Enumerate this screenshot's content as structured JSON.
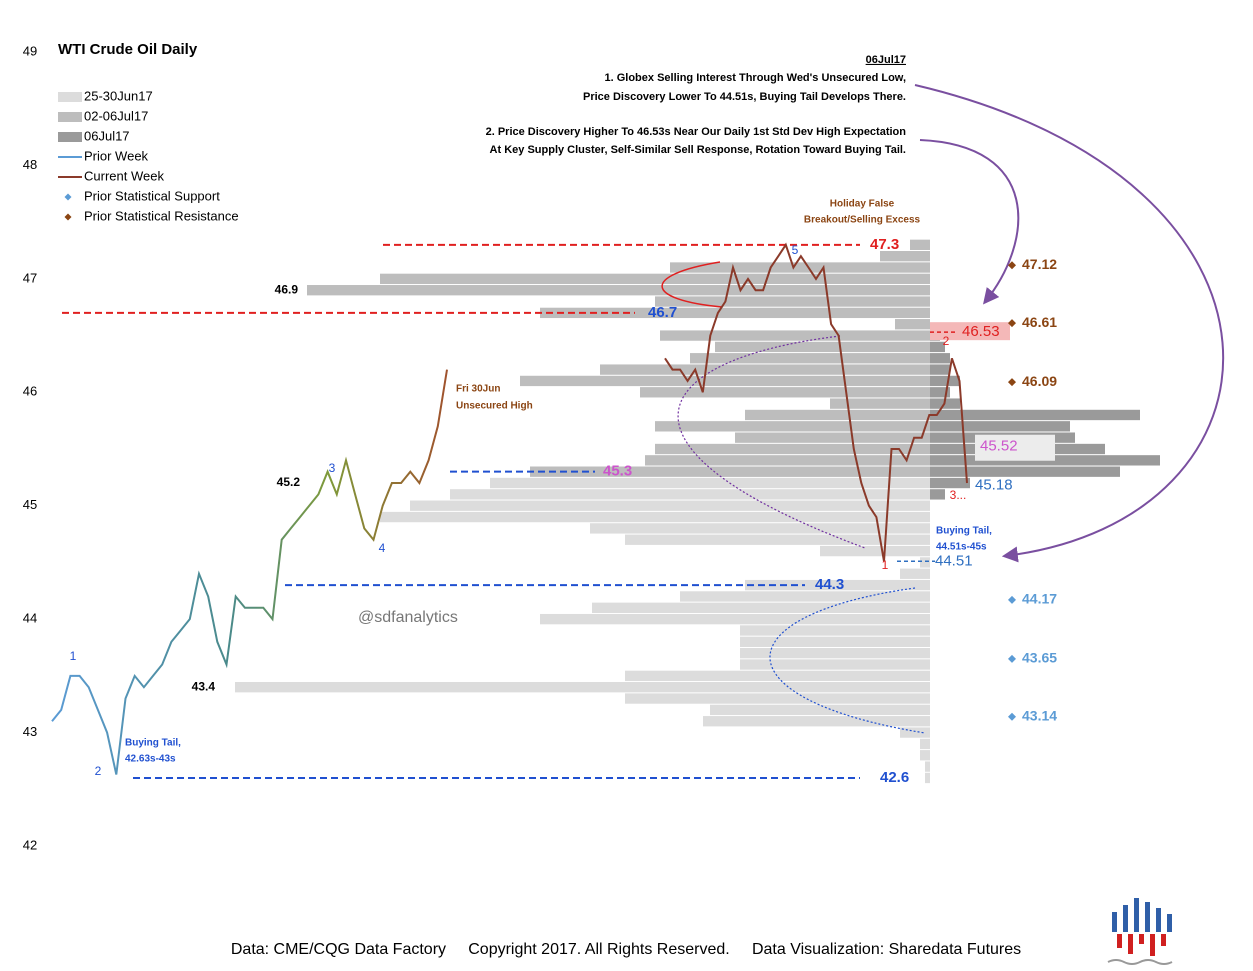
{
  "chart_data": {
    "type": "line",
    "title": "WTI Crude Oil Daily",
    "ylim": [
      42,
      49
    ],
    "yticks": [
      42,
      43,
      44,
      45,
      46,
      47,
      48,
      49
    ],
    "series": [
      {
        "name": "Prior Week",
        "color": "#5b9bd5",
        "values": [
          43.1,
          43.2,
          43.5,
          43.5,
          43.4,
          43.2,
          43.0,
          42.63,
          43.3,
          43.5,
          43.4,
          43.5,
          43.6,
          43.8,
          43.9,
          44.0,
          44.4,
          44.2,
          43.8,
          43.6,
          44.2,
          44.1,
          44.1,
          44.1,
          44.0,
          44.7,
          44.8,
          44.9,
          45.0,
          45.1,
          45.3,
          45.1,
          45.4,
          45.1,
          44.8,
          44.7,
          45.0,
          45.2,
          45.2,
          45.3,
          45.2,
          45.4,
          45.7,
          46.2
        ]
      },
      {
        "name": "Current Week",
        "color": "#8b3a2a",
        "values": [
          46.3,
          46.2,
          46.2,
          46.1,
          46.2,
          46.0,
          46.5,
          46.7,
          46.8,
          47.1,
          46.9,
          47.0,
          46.9,
          46.9,
          47.1,
          47.2,
          47.3,
          47.1,
          47.2,
          47.1,
          47.0,
          47.1,
          46.6,
          46.5,
          46.0,
          45.5,
          45.2,
          45.0,
          44.9,
          44.51,
          45.5,
          45.5,
          45.4,
          45.6,
          45.6,
          45.8,
          45.8,
          45.9,
          46.3,
          46.1,
          45.2
        ]
      }
    ],
    "profiles": [
      {
        "name": "25-30Jun17",
        "color": "#dcdcdc",
        "levels": [
          42.6,
          42.7,
          42.8,
          42.9,
          43.0,
          43.1,
          43.2,
          43.3,
          43.4,
          43.5,
          43.6,
          43.7,
          43.8,
          43.9,
          44.0,
          44.1,
          44.2,
          44.3,
          44.4,
          44.5,
          44.6,
          44.7,
          44.8,
          44.9,
          45.0,
          45.1,
          45.2,
          45.3
        ],
        "values": [
          5,
          5,
          10,
          10,
          30,
          227,
          220,
          305,
          695,
          305,
          190,
          190,
          190,
          190,
          390,
          338,
          250,
          185,
          30,
          10,
          110,
          305,
          340,
          550,
          520,
          480,
          440,
          230
        ]
      },
      {
        "name": "02-06Jul17",
        "color": "#bdbdbd",
        "levels": [
          45.3,
          45.4,
          45.5,
          45.6,
          45.7,
          45.8,
          45.9,
          46.0,
          46.1,
          46.2,
          46.3,
          46.4,
          46.5,
          46.6,
          46.7,
          46.8,
          46.9,
          47.0,
          47.1,
          47.2,
          47.3
        ],
        "values": [
          400,
          285,
          275,
          195,
          275,
          185,
          100,
          290,
          410,
          330,
          240,
          215,
          270,
          35,
          390,
          275,
          623,
          550,
          260,
          50,
          20
        ]
      },
      {
        "name": "06Jul17",
        "color": "#9a9a9a",
        "levels": [
          45.1,
          45.2,
          45.3,
          45.4,
          45.5,
          45.6,
          45.7,
          45.8,
          45.9,
          46.0,
          46.1,
          46.2,
          46.3,
          46.4,
          46.5
        ],
        "values": [
          15,
          40,
          190,
          230,
          175,
          145,
          140,
          210,
          30,
          20,
          30,
          20,
          20,
          15,
          10
        ]
      }
    ],
    "support": {
      "name": "Prior Statistical Support",
      "color": "#5b9bd5",
      "values": [
        44.17,
        43.65,
        43.14
      ]
    },
    "resistance": {
      "name": "Prior Statistical Resistance",
      "color": "#8b4513",
      "values": [
        47.12,
        46.61,
        46.09
      ]
    },
    "reference_levels": [
      {
        "value": 47.3,
        "color": "#e02020",
        "label_color": "#e02020"
      },
      {
        "value": 46.7,
        "color": "#e02020",
        "label_color": "#2050d0"
      },
      {
        "value": 45.3,
        "color": "#2050d0",
        "label_color": "#cc55cc"
      },
      {
        "value": 44.3,
        "color": "#2050d0",
        "label_color": "#2050d0"
      },
      {
        "value": 42.6,
        "color": "#2050d0",
        "label_color": "#2050d0"
      }
    ],
    "node_labels": [
      46.9,
      45.2,
      43.4
    ],
    "markers": [
      {
        "value": 46.53,
        "color": "#e02020"
      },
      {
        "value": 45.52,
        "color": "#cc55cc"
      },
      {
        "value": 45.18,
        "color": "#2f6fc0"
      },
      {
        "value": 44.51,
        "color": "#2f6fc0"
      }
    ],
    "wave_labels": [
      "1",
      "2",
      "3",
      "4",
      "5"
    ],
    "current_wave_labels": [
      "1",
      "2",
      "3..."
    ],
    "date": "06Jul17",
    "note_1": [
      "1.  Globex Selling Interest Through Wed's Unsecured Low,",
      "Price Discovery Lower To 44.51s,  Buying Tail Develops There."
    ],
    "note_2": [
      "2.  Price Discovery Higher To 46.53s  Near Our Daily 1st Std Dev High Expectation",
      "At Key Supply Cluster, Self-Similar Sell Response, Rotation Toward Buying Tail."
    ],
    "holiday_note": [
      "Holiday False",
      "Breakout/Selling Excess"
    ],
    "friday_note": [
      "Fri 30Jun",
      "Unsecured High"
    ],
    "buying_tail_current": [
      "Buying Tail,",
      "44.51s-45s"
    ],
    "buying_tail_prior": [
      "Buying Tail,",
      "42.63s-43s"
    ],
    "watermark": "@sdfanalytics",
    "footer": "Data: CME/CQG Data Factory     Copyright 2017. All Rights Reserved.     Data Visualization: Sharedata Futures"
  }
}
